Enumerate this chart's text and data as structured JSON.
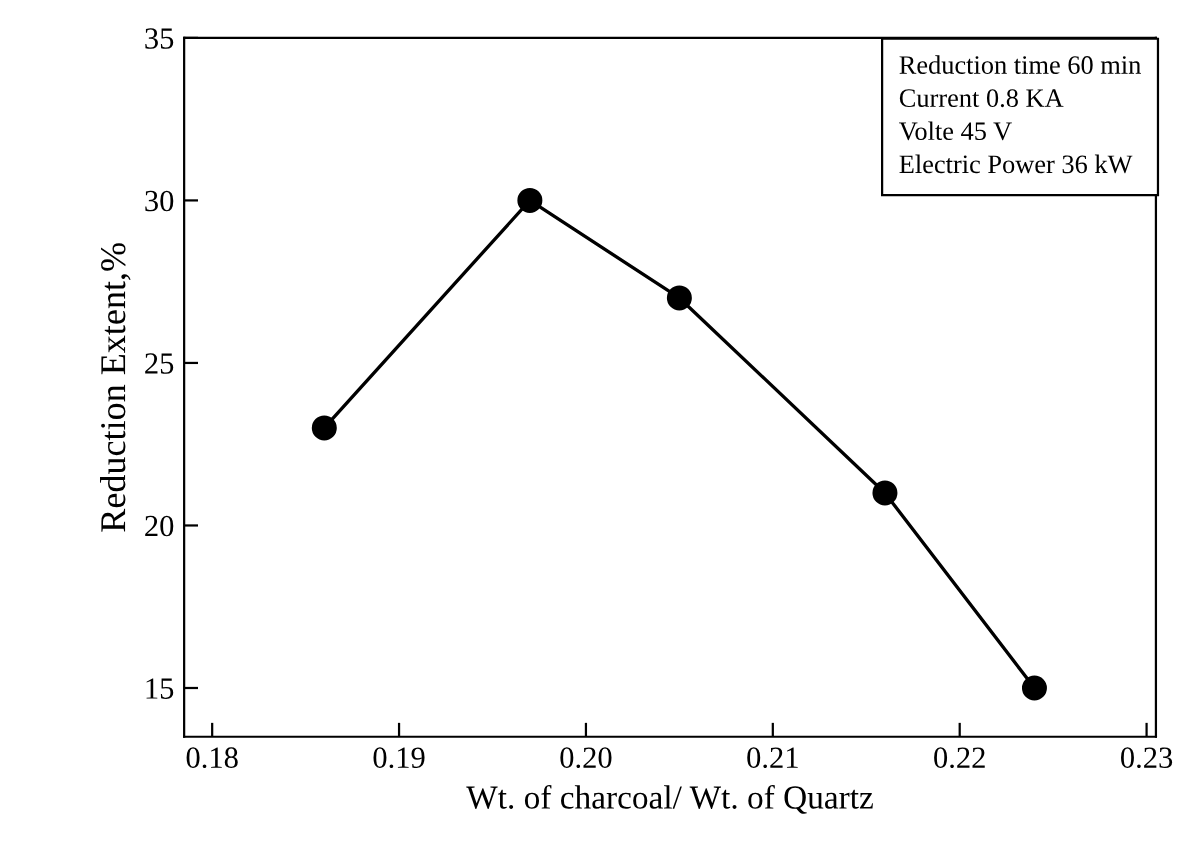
{
  "chart_data": {
    "type": "line",
    "xlabel": "Wt. of charcoal/ Wt. of Quartz",
    "ylabel": "Reduction Extent,%",
    "x": [
      0.186,
      0.197,
      0.205,
      0.216,
      0.224
    ],
    "series": [
      {
        "color": "#000000",
        "values": [
          23,
          30,
          27,
          21,
          15
        ]
      }
    ],
    "marker": "circle",
    "line_style": "solid",
    "xlim": [
      0.1785,
      0.2305
    ],
    "xticks": [
      {
        "value": 0.18,
        "label": "0.18"
      },
      {
        "value": 0.19,
        "label": "0.19"
      },
      {
        "value": 0.2,
        "label": "0.20"
      },
      {
        "value": 0.21,
        "label": "0.21"
      },
      {
        "value": 0.22,
        "label": "0.22"
      },
      {
        "value": 0.23,
        "label": "0.23"
      }
    ],
    "ylim": [
      13.5,
      35
    ],
    "yticks": [
      15,
      20,
      25,
      30,
      35
    ],
    "annotations": [
      "Reduction time 60 min\nCurrent 0.8 KA\nVolte 45 V\nElectric Power 36 kW"
    ],
    "grid": false
  }
}
